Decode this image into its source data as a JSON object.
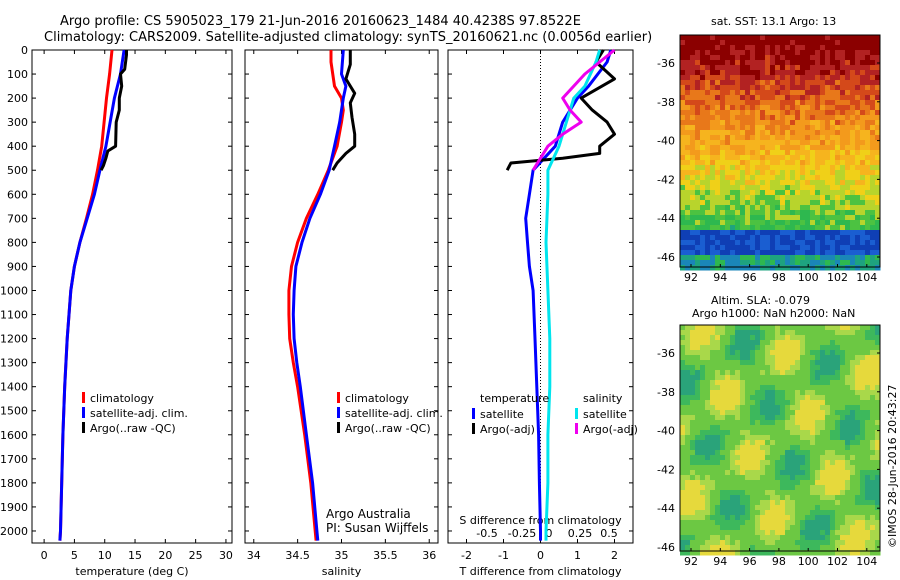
{
  "header": {
    "line1": "Argo profile: CS 5905023_179 21-Jun-2016 20160623_1484 40.4238S 97.8522E",
    "line2": "Climatology: CARS2009. Satellite-adjusted climatology: synTS_20160621.nc (0.0056d earlier)"
  },
  "credit": {
    "text": "Argo Australia",
    "pi": "PI: Susan Wijffels"
  },
  "watermark": "©IMOS 28-Jun-2016 20:43:27",
  "colors": {
    "climatology": "#ff0000",
    "satellite": "#0000ff",
    "argo": "#000000",
    "sal_satellite": "#00e5ee",
    "sal_argo": "#ee00ee"
  },
  "chart_data": [
    {
      "type": "line",
      "id": "temperature",
      "xlabel": "temperature (deg C)",
      "ylabel": "",
      "xlim": [
        -2,
        31
      ],
      "ylim": [
        2050,
        0
      ],
      "xticks": [
        0,
        5,
        10,
        15,
        20,
        25,
        30
      ],
      "yticks": [
        0,
        100,
        200,
        300,
        400,
        500,
        600,
        700,
        800,
        900,
        1000,
        1100,
        1200,
        1300,
        1400,
        1500,
        1600,
        1700,
        1800,
        1900,
        2000
      ],
      "legend": [
        "climatology",
        "satellite-adj. clim.",
        "Argo(..raw -QC)"
      ],
      "series": [
        {
          "name": "climatology",
          "depth": [
            0,
            100,
            200,
            400,
            500,
            600,
            700,
            800,
            900,
            1000,
            1200,
            1400,
            1600,
            1800,
            2000,
            2040
          ],
          "values": [
            11.2,
            10.8,
            10.3,
            9.5,
            8.8,
            8.0,
            7.0,
            5.9,
            5.0,
            4.4,
            3.8,
            3.4,
            3.1,
            2.9,
            2.7,
            2.6
          ]
        },
        {
          "name": "satellite-adj. clim.",
          "depth": [
            0,
            100,
            200,
            400,
            500,
            600,
            700,
            800,
            900,
            1000,
            1200,
            1400,
            1600,
            1800,
            2000,
            2040
          ],
          "values": [
            13.2,
            12.6,
            11.6,
            10.2,
            9.2,
            8.3,
            7.1,
            5.9,
            5.0,
            4.4,
            3.8,
            3.4,
            3.1,
            2.9,
            2.7,
            2.6
          ]
        },
        {
          "name": "Argo(..raw -QC)",
          "depth": [
            0,
            20,
            80,
            100,
            150,
            200,
            250,
            300,
            400,
            420,
            450,
            480,
            500
          ],
          "values": [
            13.6,
            13.6,
            13.3,
            12.6,
            12.8,
            12.4,
            12.4,
            11.9,
            11.8,
            10.5,
            10.2,
            9.8,
            9.4
          ]
        }
      ]
    },
    {
      "type": "line",
      "id": "salinity",
      "xlabel": "salinity",
      "ylabel": "",
      "xlim": [
        33.9,
        36.1
      ],
      "ylim": [
        2050,
        0
      ],
      "xticks": [
        34,
        34.5,
        35,
        35.5,
        36
      ],
      "legend": [
        "climatology",
        "satellite-adj. clim.",
        "Argo(..raw -QC)"
      ],
      "series": [
        {
          "name": "climatology",
          "depth": [
            0,
            50,
            150,
            200,
            250,
            300,
            400,
            500,
            600,
            700,
            800,
            900,
            1000,
            1100,
            1200,
            1300,
            1400,
            1600,
            1800,
            2000,
            2040
          ],
          "values": [
            34.88,
            34.88,
            34.92,
            35.0,
            35.02,
            35.0,
            34.95,
            34.85,
            34.73,
            34.6,
            34.5,
            34.43,
            34.4,
            34.4,
            34.41,
            34.45,
            34.5,
            34.58,
            34.65,
            34.7,
            34.71
          ]
        },
        {
          "name": "satellite-adj. clim.",
          "depth": [
            0,
            100,
            150,
            200,
            300,
            400,
            500,
            600,
            700,
            800,
            900,
            1000,
            1100,
            1200,
            1300,
            1400,
            1600,
            1800,
            2000,
            2040
          ],
          "values": [
            35.02,
            35.0,
            35.05,
            35.02,
            34.98,
            34.92,
            34.86,
            34.76,
            34.64,
            34.55,
            34.48,
            34.46,
            34.45,
            34.46,
            34.49,
            34.53,
            34.6,
            34.67,
            34.72,
            34.73
          ]
        },
        {
          "name": "Argo(..raw -QC)",
          "depth": [
            0,
            60,
            120,
            180,
            220,
            280,
            350,
            400,
            430,
            470,
            500
          ],
          "values": [
            35.1,
            35.1,
            35.05,
            35.15,
            35.1,
            35.12,
            35.15,
            35.15,
            35.05,
            34.95,
            34.9
          ]
        }
      ]
    },
    {
      "type": "line",
      "id": "difference",
      "xlabel": "T difference from climatology",
      "xlabel2": "S difference from climatology",
      "xlim": [
        -2.5,
        2.5
      ],
      "ylim": [
        2050,
        0
      ],
      "xticks": [
        -2,
        -1,
        0,
        1,
        2
      ],
      "xticks2": [
        "-0.5",
        "-0.25",
        "0",
        "0.25",
        "0.5"
      ],
      "legend_titles": [
        "temperature",
        "salinity"
      ],
      "legend": [
        "satellite",
        "Argo(-adj)",
        "satellite",
        "Argo(-adj)"
      ],
      "series": [
        {
          "name": "T satellite",
          "depth": [
            0,
            50,
            150,
            200,
            300,
            400,
            500,
            600,
            700,
            800,
            900,
            1000,
            1200,
            1400,
            1600,
            1800,
            2000,
            2040
          ],
          "values": [
            1.9,
            1.8,
            1.3,
            1.0,
            0.6,
            0.4,
            -0.2,
            -0.3,
            -0.4,
            -0.35,
            -0.3,
            -0.2,
            -0.15,
            -0.1,
            -0.05,
            -0.03,
            0.0,
            0.0
          ]
        },
        {
          "name": "T Argo(-adj)",
          "depth": [
            0,
            50,
            120,
            200,
            250,
            300,
            350,
            400,
            430,
            450,
            470,
            500
          ],
          "values": [
            1.7,
            1.5,
            2.0,
            1.1,
            1.4,
            1.8,
            2.0,
            1.6,
            1.6,
            0.6,
            -0.8,
            -0.9
          ]
        },
        {
          "name": "S satellite",
          "depth": [
            0,
            50,
            150,
            200,
            300,
            400,
            500,
            600,
            800,
            1000,
            1200,
            1400,
            1600,
            1800,
            2000,
            2040
          ],
          "values": [
            1.6,
            1.5,
            1.2,
            0.9,
            0.7,
            0.5,
            0.2,
            0.2,
            0.15,
            0.2,
            0.25,
            0.25,
            0.2,
            0.2,
            0.15,
            0.15
          ]
        },
        {
          "name": "S Argo(-adj)",
          "depth": [
            0,
            50,
            100,
            200,
            250,
            300,
            350,
            400,
            450,
            500
          ],
          "values": [
            2.0,
            1.6,
            1.2,
            0.6,
            0.8,
            1.1,
            0.6,
            0.2,
            0.0,
            -0.2
          ]
        }
      ]
    }
  ],
  "maps": [
    {
      "id": "sst-map",
      "title": "sat. SST: 13.1  Argo: 13",
      "xticks": [
        "92",
        "94",
        "96",
        "98",
        "100",
        "102",
        "104"
      ],
      "yticks": [
        "-36",
        "-38",
        "-40",
        "-42",
        "-44",
        "-46"
      ]
    },
    {
      "id": "sla-map",
      "title": "Altim. SLA: -0.079",
      "subtitle": "Argo h1000: NaN h2000: NaN",
      "xticks": [
        "92",
        "94",
        "96",
        "98",
        "100",
        "102",
        "104"
      ],
      "yticks": [
        "-36",
        "-38",
        "-40",
        "-42",
        "-44",
        "-46"
      ]
    }
  ]
}
